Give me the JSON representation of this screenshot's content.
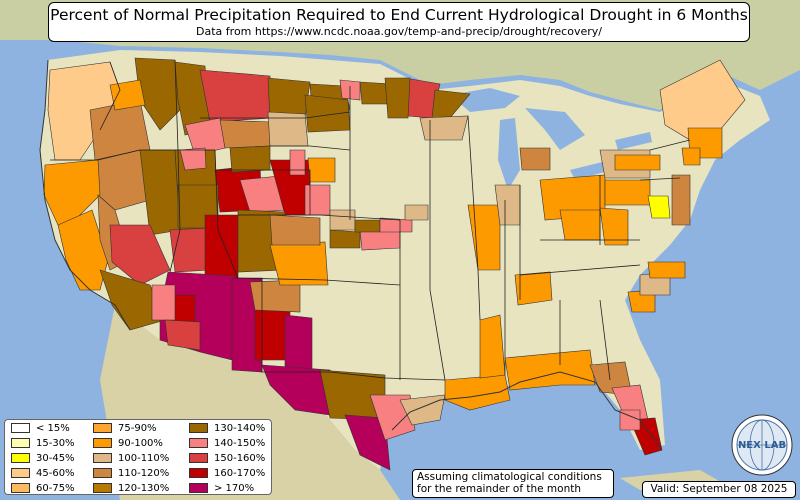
{
  "title": "Percent of Normal Precipitation Required to End Current Hydrological Drought in 6 Months",
  "subtitle": "Data from https://www.ncdc.noaa.gov/temp-and-precip/drought/recovery/",
  "legend": [
    {
      "label": "< 15%",
      "color": "#ffffff"
    },
    {
      "label": "15-30%",
      "color": "#ffffb2"
    },
    {
      "label": "30-45%",
      "color": "#ffff00"
    },
    {
      "label": "45-60%",
      "color": "#fecb8a"
    },
    {
      "label": "60-75%",
      "color": "#fdb862"
    },
    {
      "label": "75-90%",
      "color": "#fda52f"
    },
    {
      "label": "90-100%",
      "color": "#fd9a00"
    },
    {
      "label": "100-110%",
      "color": "#deb887"
    },
    {
      "label": "110-120%",
      "color": "#cd853f"
    },
    {
      "label": "120-130%",
      "color": "#b87800"
    },
    {
      "label": "130-140%",
      "color": "#9a6700"
    },
    {
      "label": "140-150%",
      "color": "#f98080"
    },
    {
      "label": "150-160%",
      "color": "#d94040"
    },
    {
      "label": "160-170%",
      "color": "#c00000"
    },
    {
      "label": "> 170%",
      "color": "#b5005b"
    }
  ],
  "note": {
    "line1": "Assuming climatological conditions",
    "line2": "for the remainder of the month"
  },
  "valid": "Valid: September 08 2025",
  "logo": {
    "text": "NEX LAB",
    "icon": "nexlab-globe-logo"
  },
  "colors": {
    "ocean": "#8fb3e0",
    "land": "#e8e4c0",
    "water": "#8fb3e0"
  }
}
